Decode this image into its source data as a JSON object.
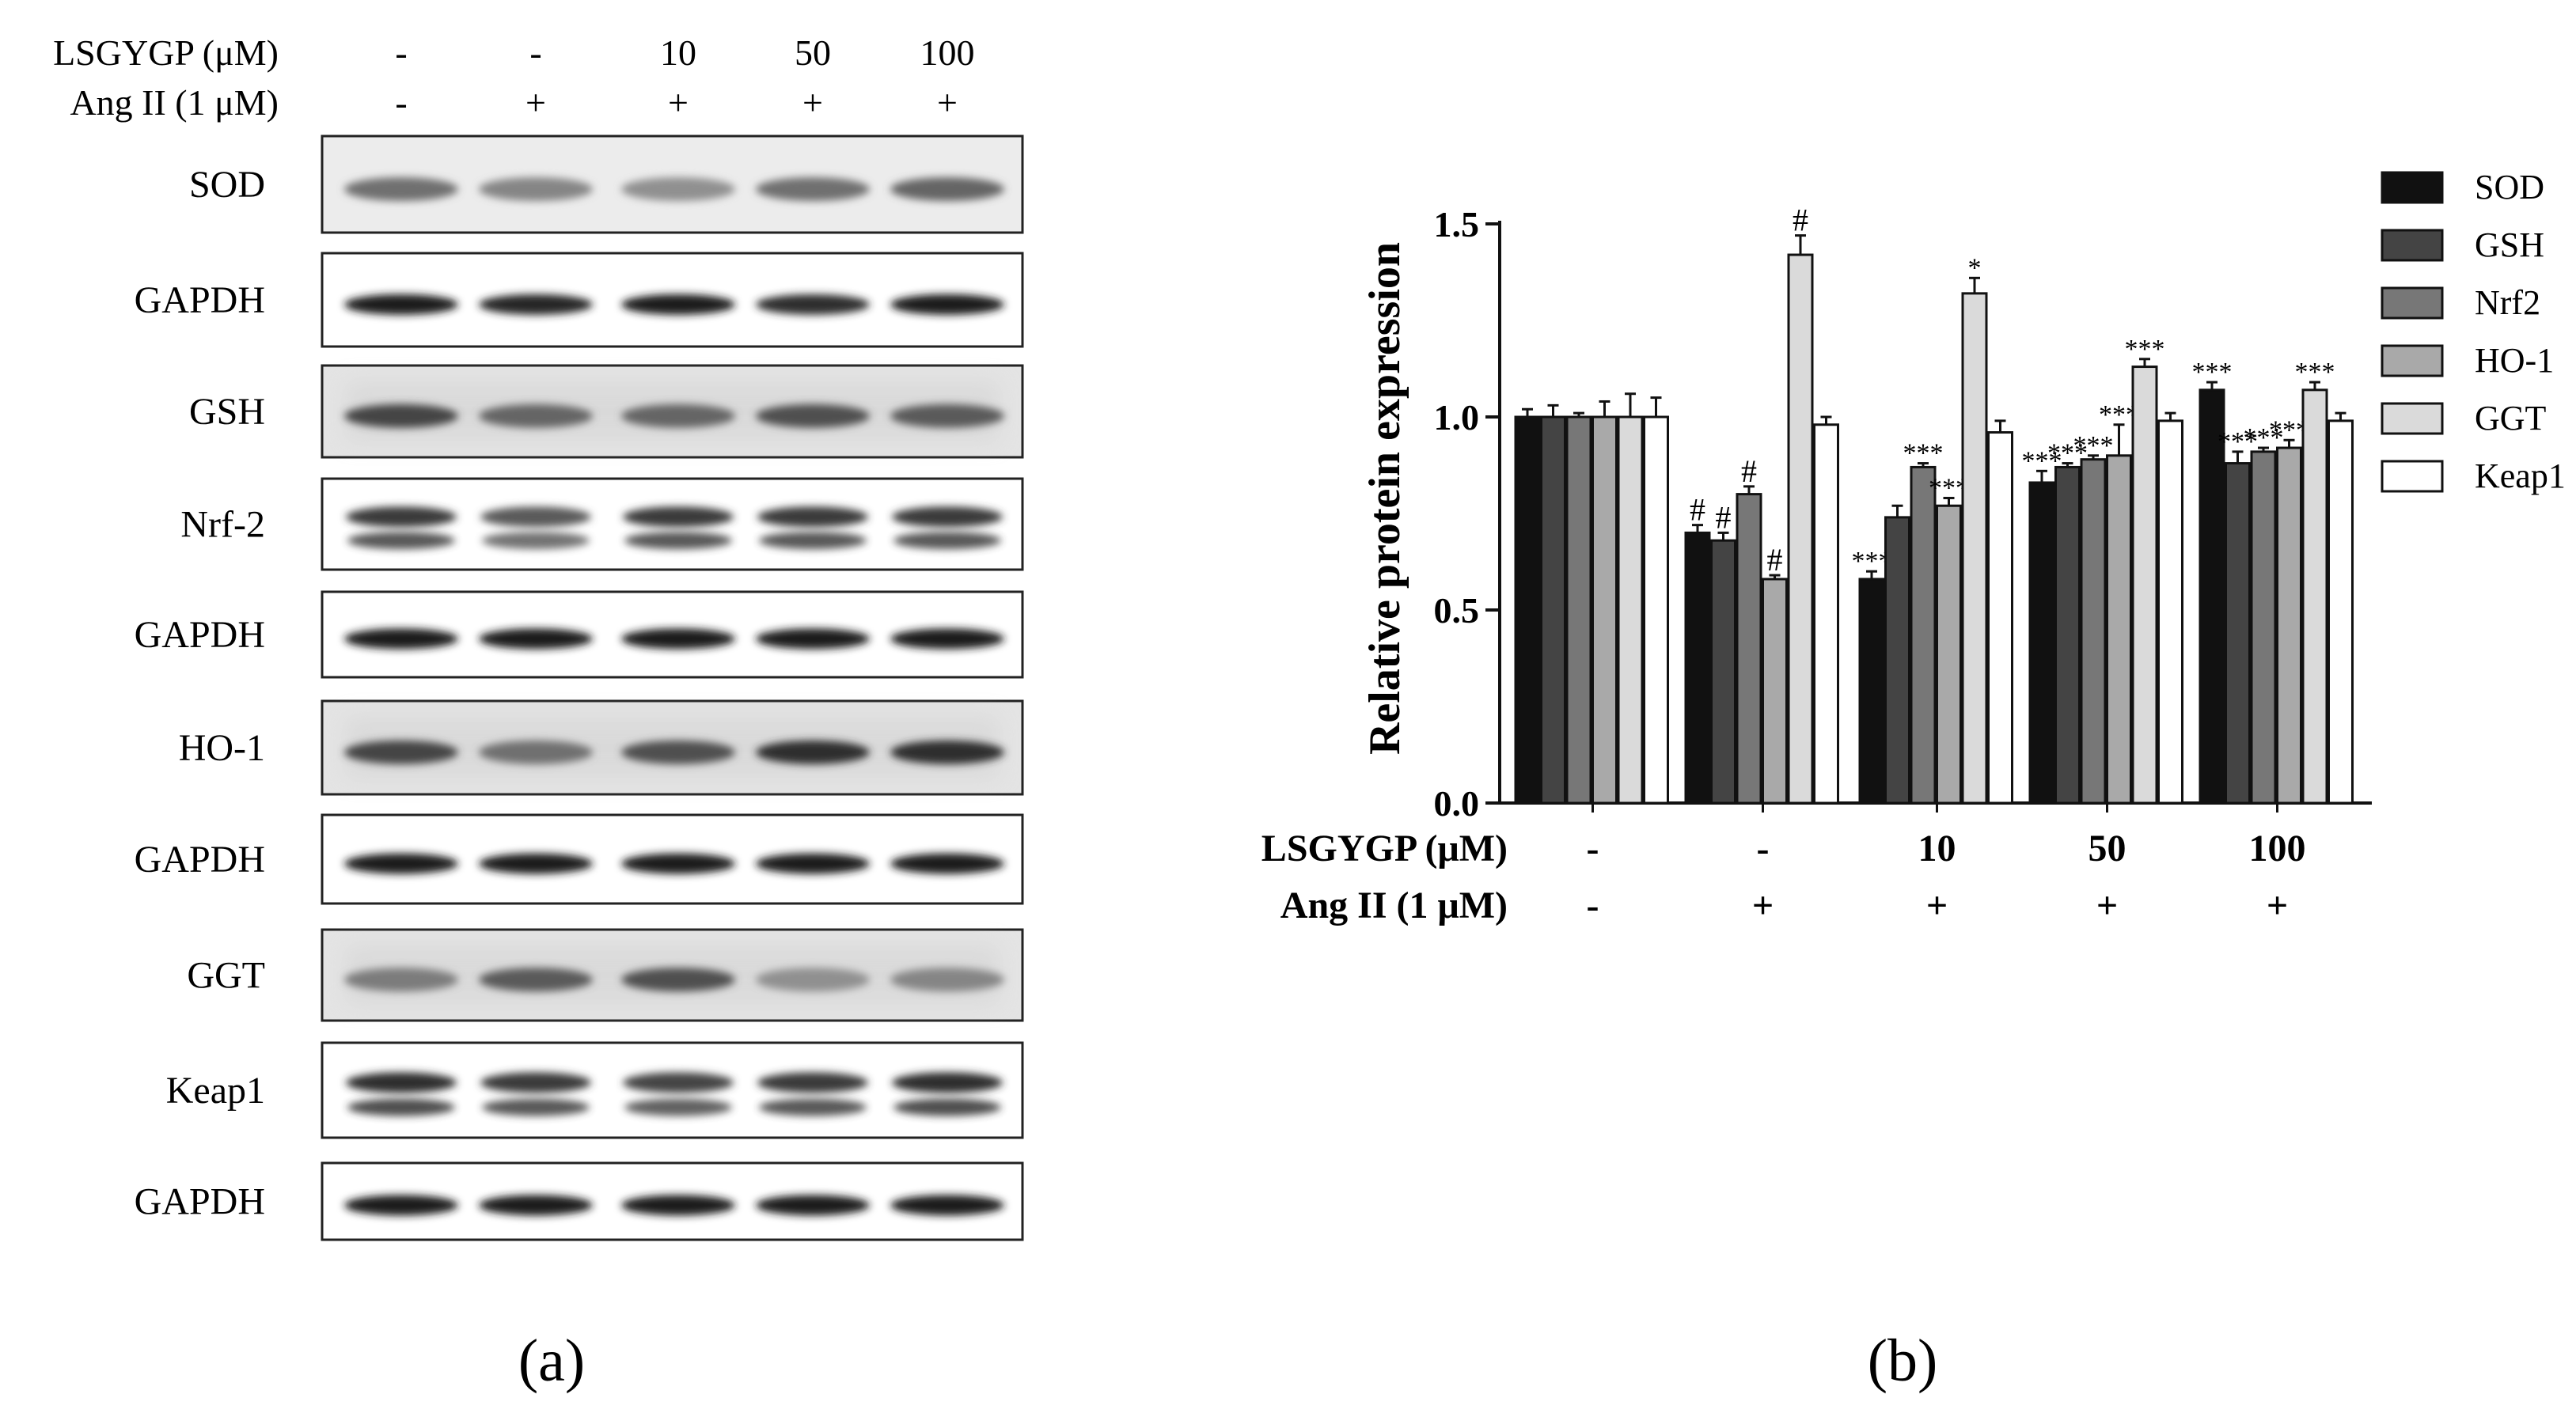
{
  "panel_a": {
    "panel_label": "(a)",
    "treatments": [
      {
        "label": "LSGYGP (μM)",
        "values": [
          "-",
          "-",
          "10",
          "50",
          "100"
        ]
      },
      {
        "label": "Ang II (1 μM)",
        "values": [
          "-",
          "+",
          "+",
          "+",
          "+"
        ]
      }
    ],
    "blots": [
      {
        "label": "SOD",
        "intensities": [
          0.55,
          0.45,
          0.4,
          0.55,
          0.6
        ],
        "style": "faint"
      },
      {
        "label": "GAPDH",
        "intensities": [
          0.95,
          0.9,
          0.95,
          0.85,
          0.95
        ],
        "style": "clean"
      },
      {
        "label": "GSH",
        "intensities": [
          0.75,
          0.6,
          0.6,
          0.7,
          0.65
        ],
        "style": "noisy"
      },
      {
        "label": "Nrf-2",
        "intensities": [
          0.8,
          0.65,
          0.8,
          0.8,
          0.8
        ],
        "style": "double"
      },
      {
        "label": "GAPDH",
        "intensities": [
          0.95,
          0.95,
          0.95,
          0.95,
          0.95
        ],
        "style": "clean"
      },
      {
        "label": "HO-1",
        "intensities": [
          0.75,
          0.55,
          0.7,
          0.85,
          0.85
        ],
        "style": "noisy"
      },
      {
        "label": "GAPDH",
        "intensities": [
          0.95,
          0.95,
          0.95,
          0.95,
          0.95
        ],
        "style": "clean"
      },
      {
        "label": "GGT",
        "intensities": [
          0.5,
          0.65,
          0.7,
          0.4,
          0.45
        ],
        "style": "noisy"
      },
      {
        "label": "Keap1",
        "intensities": [
          0.85,
          0.8,
          0.75,
          0.8,
          0.85
        ],
        "style": "double"
      },
      {
        "label": "GAPDH",
        "intensities": [
          0.95,
          0.95,
          0.95,
          0.95,
          0.95
        ],
        "style": "clean"
      }
    ]
  },
  "panel_b": {
    "panel_label": "(b)",
    "ylabel": "Relative protein expression",
    "treatments": [
      {
        "label": "LSGYGP (μM)",
        "values": [
          "-",
          "-",
          "10",
          "50",
          "100"
        ]
      },
      {
        "label": "Ang II (1 μM)",
        "values": [
          "-",
          "+",
          "+",
          "+",
          "+"
        ]
      }
    ]
  },
  "chart_data": {
    "type": "bar",
    "categories": [
      "-/-",
      "-/+",
      "10/+",
      "50/+",
      "100/+"
    ],
    "ylim": [
      0.0,
      1.5
    ],
    "yticks": [
      "0.0",
      "0.5",
      "1.0",
      "1.5"
    ],
    "ylabel": "Relative protein expression",
    "legend_position": "right",
    "series": [
      {
        "name": "SOD",
        "color": "#111111",
        "values": [
          1.0,
          0.7,
          0.58,
          0.83,
          1.07
        ],
        "errors": [
          0.02,
          0.02,
          0.02,
          0.03,
          0.02
        ],
        "annotations": [
          "",
          "#",
          "***",
          "***",
          "***"
        ]
      },
      {
        "name": "GSH",
        "color": "#444444",
        "values": [
          1.0,
          0.68,
          0.74,
          0.87,
          0.88
        ],
        "errors": [
          0.03,
          0.02,
          0.03,
          0.01,
          0.03
        ],
        "annotations": [
          "",
          "#",
          "",
          "***",
          "***"
        ]
      },
      {
        "name": "Nrf2",
        "color": "#777777",
        "values": [
          1.0,
          0.8,
          0.87,
          0.89,
          0.91
        ],
        "errors": [
          0.01,
          0.02,
          0.01,
          0.01,
          0.01
        ],
        "annotations": [
          "",
          "#",
          "***",
          "***",
          "***"
        ]
      },
      {
        "name": "HO-1",
        "color": "#a9a9a9",
        "values": [
          1.0,
          0.58,
          0.77,
          0.9,
          0.92
        ],
        "errors": [
          0.04,
          0.01,
          0.02,
          0.08,
          0.02
        ],
        "annotations": [
          "",
          "#",
          "***",
          "***",
          "***"
        ]
      },
      {
        "name": "GGT",
        "color": "#dadada",
        "values": [
          1.0,
          1.42,
          1.32,
          1.13,
          1.07
        ],
        "errors": [
          0.06,
          0.05,
          0.04,
          0.02,
          0.02
        ],
        "annotations": [
          "",
          "#",
          "*",
          "***",
          "***"
        ]
      },
      {
        "name": "Keap1",
        "color": "#ffffff",
        "values": [
          1.0,
          0.98,
          0.96,
          0.99,
          0.99
        ],
        "errors": [
          0.05,
          0.02,
          0.03,
          0.02,
          0.02
        ],
        "annotations": [
          "",
          "",
          "",
          "",
          ""
        ]
      }
    ]
  }
}
